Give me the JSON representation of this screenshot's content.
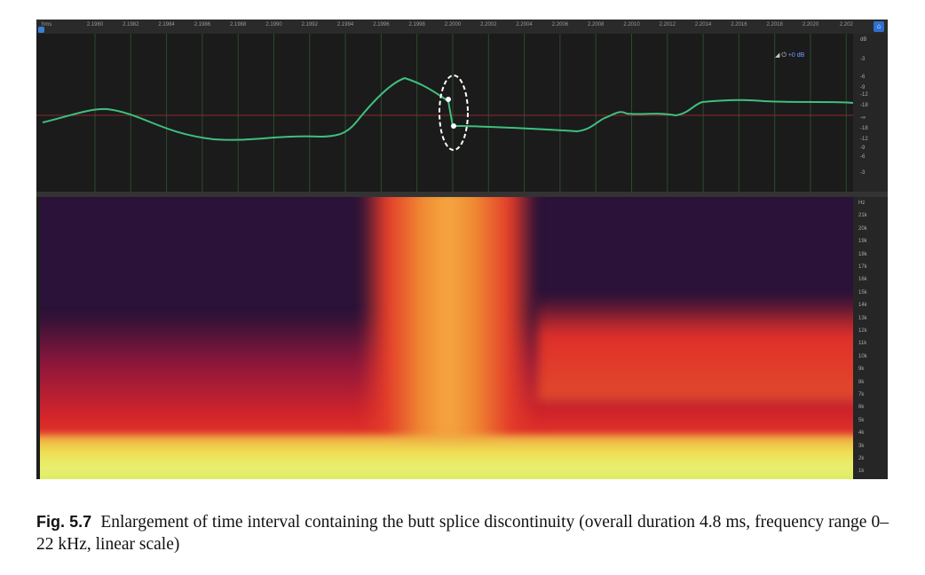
{
  "ruler": {
    "unit": "hms",
    "ticks": [
      "2.1980",
      "2.1982",
      "2.1984",
      "2.1986",
      "2.1988",
      "2.1990",
      "2.1992",
      "2.1994",
      "2.1996",
      "2.1998",
      "2.2000",
      "2.2002",
      "2.2004",
      "2.2006",
      "2.2008",
      "2.2010",
      "2.2012",
      "2.2014",
      "2.2016",
      "2.2018",
      "2.2020",
      "2.202"
    ]
  },
  "toolbar": {
    "gain": "+0 dB"
  },
  "db_scale": [
    "dB",
    "-3",
    "-6",
    "-9",
    "-12",
    "-18",
    "-∞",
    "-18",
    "-12",
    "-9",
    "-6",
    "-3"
  ],
  "hz_scale": [
    "Hz",
    "21k",
    "20k",
    "19k",
    "18k",
    "17k",
    "16k",
    "15k",
    "14k",
    "13k",
    "12k",
    "11k",
    "10k",
    "9k",
    "8k",
    "7k",
    "6k",
    "5k",
    "4k",
    "3k",
    "2k",
    "1k"
  ],
  "colors": {
    "waveform": "#3fbf7f",
    "zero_line": "#8a2a2a",
    "highlight": "#ffffff"
  },
  "caption": {
    "label": "Fig. 5.7",
    "text": "Enlargement of time interval containing the butt splice discontinuity (overall duration 4.8 ms, frequency range 0–22 kHz, linear scale)"
  }
}
